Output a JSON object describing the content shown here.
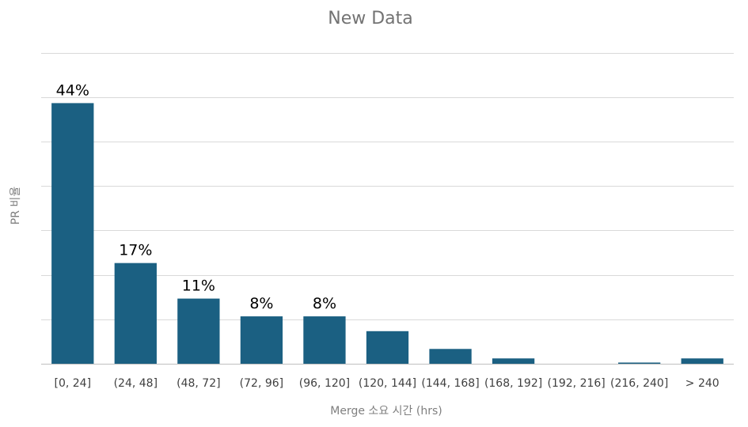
{
  "chart_data": {
    "type": "bar",
    "title": "New Data",
    "xlabel": "Merge 소요  시간 (hrs)",
    "ylabel": "PR 비율",
    "categories": [
      "[0, 24]",
      "(24, 48]",
      "(48, 72]",
      "(72, 96]",
      "(96, 120]",
      "(120, 144]",
      "(144, 168]",
      "(168, 192]",
      "(192, 216]",
      "(216, 240]",
      "> 240"
    ],
    "values": [
      44,
      17,
      11,
      8,
      8,
      5.5,
      2.5,
      0.9,
      0,
      0.2,
      0.9
    ],
    "data_labels": [
      "44%",
      "17%",
      "11%",
      "8%",
      "8%",
      "",
      "",
      "",
      "",
      "",
      ""
    ],
    "ylim": [
      0,
      55
    ],
    "y_unit": "%",
    "grid": true,
    "show_y_tick_labels": false,
    "legend": "none",
    "bar_color": "#1b6082"
  }
}
